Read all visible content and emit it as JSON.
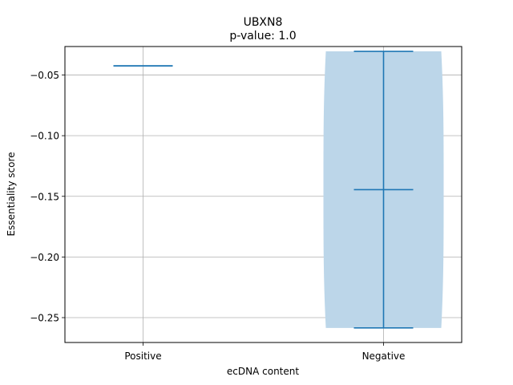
{
  "chart_data": {
    "type": "violin",
    "title": "UBXN8",
    "subtitle": "p-value: 1.0",
    "xlabel": "ecDNA content",
    "ylabel": "Essentiality score",
    "categories": [
      "Positive",
      "Negative"
    ],
    "ylim": [
      -0.2705,
      -0.0265
    ],
    "yticks": [
      -0.05,
      -0.1,
      -0.15,
      -0.2,
      -0.25
    ],
    "ytick_labels": [
      "−0.05",
      "−0.10",
      "−0.15",
      "−0.20",
      "−0.25"
    ],
    "grid": true,
    "series": [
      {
        "category": "Positive",
        "min": -0.0425,
        "max": -0.0425,
        "median": -0.0425,
        "has_body": false
      },
      {
        "category": "Negative",
        "min": -0.2585,
        "max": -0.0305,
        "median": -0.1445,
        "has_body": true
      }
    ],
    "colors": {
      "line": "#1f77b4",
      "body": "#bcd6e9",
      "grid": "#b0b0b0"
    }
  }
}
